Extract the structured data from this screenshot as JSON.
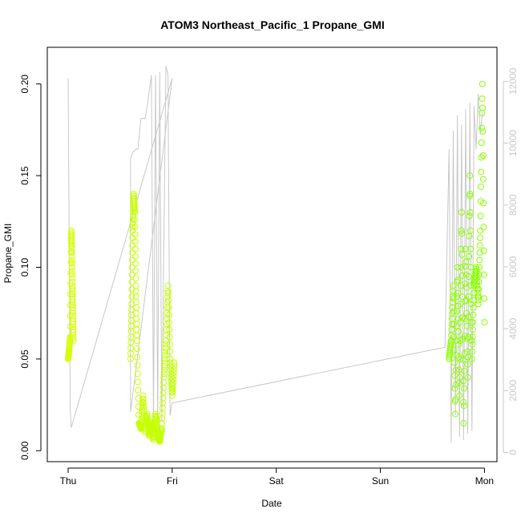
{
  "chart_data": {
    "type": "scatter",
    "title": "ATOM3 Northeast_Pacific_1 Propane_GMI",
    "xlabel": "Date",
    "ylabel": "Propane_GMI",
    "x_ticks": [
      "Thu",
      "Fri",
      "Sat",
      "Sun",
      "Mon"
    ],
    "x_tick_positions_days": [
      0,
      1,
      2,
      3,
      4
    ],
    "xlim_days": [
      -0.2,
      4.12
    ],
    "ylim": [
      -0.006,
      0.22
    ],
    "y_ticks": [
      0.0,
      0.05,
      0.1,
      0.15,
      0.2
    ],
    "y_tick_labels": [
      "0.00",
      "0.05",
      "0.10",
      "0.15",
      "0.20"
    ],
    "y2lim": [
      -300,
      13100
    ],
    "y2_ticks": [
      0,
      2000,
      4000,
      6000,
      8000,
      10000,
      12000
    ],
    "y2_tick_labels": [
      "0",
      "2000",
      "4000",
      "6000",
      "8000",
      "10000",
      "12000"
    ],
    "grid": false,
    "legend": "none",
    "series": [
      {
        "kind": "points",
        "marker": "open-circle",
        "color_early": "#d4ff00",
        "color_late": "#88ff00",
        "segments": [
          {
            "t": [
              0.0,
              0.01,
              0.02,
              0.03,
              0.035,
              0.04,
              0.045,
              0.05
            ],
            "y": [
              0.05,
              0.055,
              0.062,
              0.12,
              0.11,
              0.09,
              0.075,
              0.06
            ]
          },
          {
            "t": [
              0.6,
              0.61,
              0.62,
              0.63,
              0.64,
              0.65,
              0.66,
              0.68,
              0.7,
              0.72,
              0.74,
              0.76,
              0.78,
              0.8,
              0.82,
              0.84,
              0.86,
              0.88,
              0.9,
              0.92,
              0.94,
              0.96,
              0.98,
              1.0,
              1.02
            ],
            "y": [
              0.05,
              0.08,
              0.12,
              0.14,
              0.13,
              0.09,
              0.06,
              0.015,
              0.012,
              0.03,
              0.01,
              0.02,
              0.008,
              0.015,
              0.006,
              0.02,
              0.01,
              0.005,
              0.012,
              0.04,
              0.06,
              0.09,
              0.05,
              0.03,
              0.048
            ]
          },
          {
            "t": [
              3.66,
              3.68,
              3.7,
              3.72,
              3.74,
              3.76,
              3.78,
              3.8,
              3.82,
              3.84,
              3.86,
              3.88,
              3.9,
              3.92,
              3.94,
              3.96,
              3.98,
              4.0
            ],
            "y": [
              0.05,
              0.06,
              0.09,
              0.02,
              0.1,
              0.03,
              0.13,
              0.015,
              0.11,
              0.04,
              0.15,
              0.05,
              0.09,
              0.1,
              0.08,
              0.12,
              0.2,
              0.07
            ]
          }
        ]
      },
      {
        "kind": "line",
        "axis": "right",
        "color": "#c8c8c8",
        "t": [
          0.0,
          0.0,
          0.02,
          0.03,
          1.0,
          1.0,
          0.6,
          0.6,
          0.62,
          0.65,
          0.67,
          0.7,
          0.74,
          0.76,
          0.8,
          0.82,
          0.84,
          0.86,
          0.88,
          0.9,
          0.94,
          0.96,
          0.98,
          1.0,
          3.62,
          3.66,
          3.68,
          3.7,
          3.72,
          3.74,
          3.76,
          3.78,
          3.8,
          3.82,
          3.84,
          3.86,
          3.88,
          3.9,
          3.92,
          3.94,
          3.96,
          3.98
        ],
        "v": [
          12100,
          12100,
          1400,
          800,
          12100,
          12100,
          1300,
          9500,
          9700,
          9800,
          9800,
          10800,
          10800,
          11200,
          12200,
          1100,
          12200,
          1000,
          12300,
          1000,
          12500,
          12200,
          1200,
          1600,
          3400,
          9800,
          300,
          10400,
          1200,
          10900,
          500,
          10600,
          400,
          11100,
          600,
          11300,
          700,
          11200,
          9800,
          11600,
          10300,
          11000
        ]
      }
    ]
  }
}
